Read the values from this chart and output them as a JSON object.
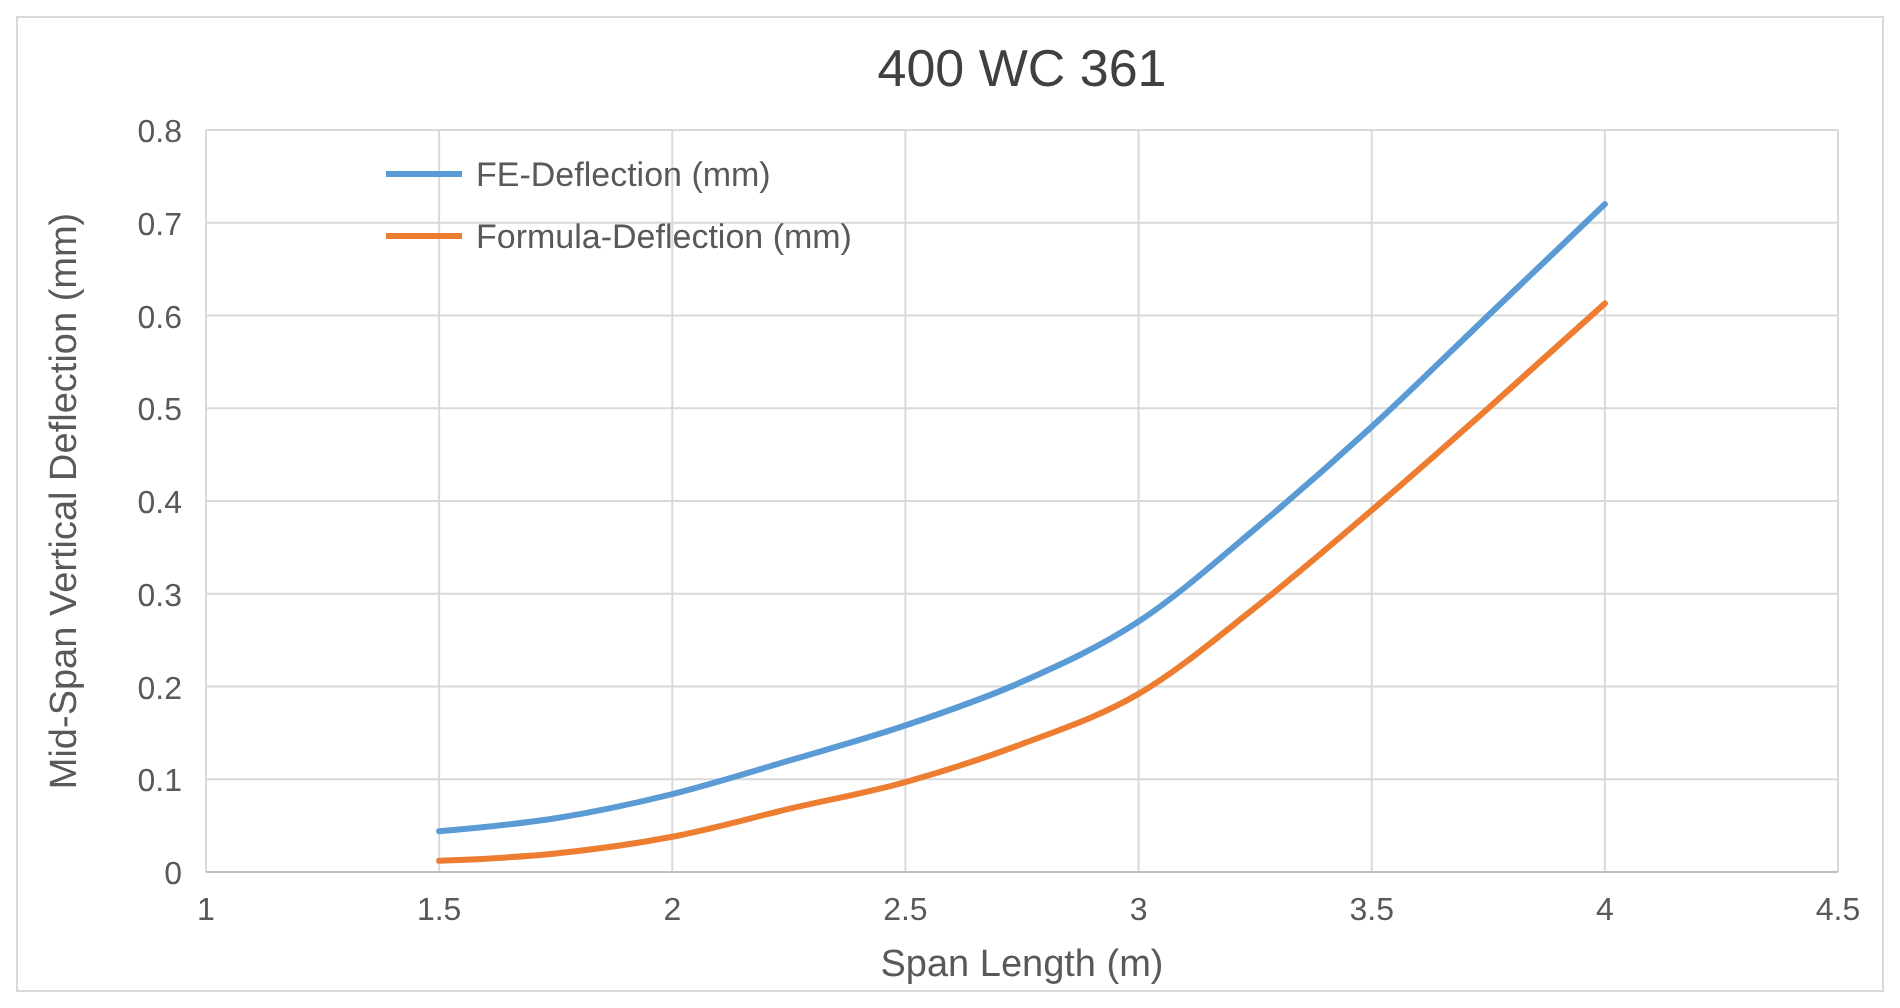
{
  "chart_data": {
    "type": "line",
    "title": "400 WC 361",
    "xlabel": "Span Length (m)",
    "ylabel": "Mid-Span Vertical Deflection (mm)",
    "x": [
      1.5,
      1.75,
      2,
      2.25,
      2.5,
      2.75,
      3,
      3.25,
      3.5,
      3.75,
      4
    ],
    "series": [
      {
        "name": "FE-Deflection (mm)",
        "color": "#5b9bd5",
        "values": [
          0.044,
          0.058,
          0.084,
          0.12,
          0.158,
          0.205,
          0.27,
          0.37,
          0.48,
          0.6,
          0.72
        ]
      },
      {
        "name": "Formula-Deflection (mm)",
        "color": "#ed7d31",
        "values": [
          0.012,
          0.02,
          0.038,
          0.068,
          0.097,
          0.138,
          0.192,
          0.285,
          0.39,
          0.5,
          0.613
        ]
      }
    ],
    "xlim": [
      1,
      4.5
    ],
    "xticks": [
      1,
      1.5,
      2,
      2.5,
      3,
      3.5,
      4,
      4.5
    ],
    "ylim": [
      0,
      0.8
    ],
    "yticks": [
      0,
      0.1,
      0.2,
      0.3,
      0.4,
      0.5,
      0.6,
      0.7,
      0.8
    ],
    "grid": true,
    "legend": "top left",
    "marker": "none",
    "line_style": "solid"
  }
}
